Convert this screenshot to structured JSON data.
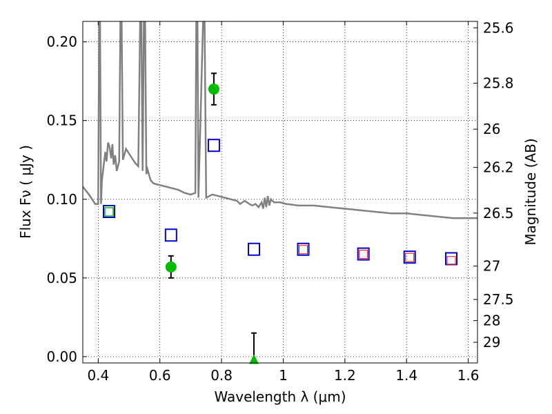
{
  "chart_data": {
    "type": "scatter",
    "xlabel": "Wavelength  λ (μm)",
    "ylabel": "Flux  Fν  ( μJy )",
    "ylabel_right": "Magnitude (AB)",
    "xlim": [
      0.35,
      1.63
    ],
    "ylim": [
      -0.004,
      0.213
    ],
    "grid": true,
    "x_ticks": [
      {
        "value": 0.4,
        "label": "0.4"
      },
      {
        "value": 0.6,
        "label": "0.6"
      },
      {
        "value": 0.8,
        "label": "0.8"
      },
      {
        "value": 1.0,
        "label": "1"
      },
      {
        "value": 1.2,
        "label": "1.2"
      },
      {
        "value": 1.4,
        "label": "1.4"
      },
      {
        "value": 1.6,
        "label": "1.6"
      }
    ],
    "y_ticks": [
      {
        "value": 0.0,
        "label": "0.00"
      },
      {
        "value": 0.05,
        "label": "0.05"
      },
      {
        "value": 0.1,
        "label": "0.10"
      },
      {
        "value": 0.15,
        "label": "0.15"
      },
      {
        "value": 0.2,
        "label": "0.20"
      }
    ],
    "mag_ticks": [
      {
        "value": 25.6,
        "label": "25.6"
      },
      {
        "value": 25.8,
        "label": "25.8"
      },
      {
        "value": 26.0,
        "label": "26"
      },
      {
        "value": 26.2,
        "label": "26.2"
      },
      {
        "value": 26.5,
        "label": "26.5"
      },
      {
        "value": 27.0,
        "label": "27"
      },
      {
        "value": 27.5,
        "label": "27.5"
      },
      {
        "value": 28.0,
        "label": "28"
      },
      {
        "value": 29.0,
        "label": "29"
      }
    ],
    "series": [
      {
        "kind": "line",
        "color": "#808080",
        "points": [
          [
            0.35,
            0.108
          ],
          [
            0.37,
            0.103
          ],
          [
            0.39,
            0.097
          ],
          [
            0.4,
            0.097
          ],
          [
            0.403,
            0.213
          ],
          [
            0.406,
            0.213
          ],
          [
            0.409,
            0.097
          ],
          [
            0.412,
            0.112
          ],
          [
            0.418,
            0.122
          ],
          [
            0.423,
            0.13
          ],
          [
            0.427,
            0.124
          ],
          [
            0.432,
            0.136
          ],
          [
            0.437,
            0.133
          ],
          [
            0.442,
            0.126
          ],
          [
            0.446,
            0.135
          ],
          [
            0.45,
            0.122
          ],
          [
            0.455,
            0.128
          ],
          [
            0.46,
            0.118
          ],
          [
            0.468,
            0.124
          ],
          [
            0.472,
            0.213
          ],
          [
            0.476,
            0.213
          ],
          [
            0.48,
            0.125
          ],
          [
            0.49,
            0.132
          ],
          [
            0.5,
            0.129
          ],
          [
            0.51,
            0.126
          ],
          [
            0.52,
            0.123
          ],
          [
            0.53,
            0.121
          ],
          [
            0.536,
            0.213
          ],
          [
            0.54,
            0.213
          ],
          [
            0.544,
            0.118
          ],
          [
            0.548,
            0.213
          ],
          [
            0.552,
            0.213
          ],
          [
            0.556,
            0.116
          ],
          [
            0.56,
            0.119
          ],
          [
            0.57,
            0.112
          ],
          [
            0.58,
            0.11
          ],
          [
            0.6,
            0.109
          ],
          [
            0.62,
            0.108
          ],
          [
            0.64,
            0.107
          ],
          [
            0.66,
            0.106
          ],
          [
            0.68,
            0.104
          ],
          [
            0.7,
            0.103
          ],
          [
            0.715,
            0.104
          ],
          [
            0.718,
            0.213
          ],
          [
            0.722,
            0.213
          ],
          [
            0.725,
            0.101
          ],
          [
            0.74,
            0.213
          ],
          [
            0.745,
            0.213
          ],
          [
            0.75,
            0.101
          ],
          [
            0.77,
            0.103
          ],
          [
            0.79,
            0.102
          ],
          [
            0.81,
            0.101
          ],
          [
            0.83,
            0.1
          ],
          [
            0.85,
            0.099
          ],
          [
            0.86,
            0.097
          ],
          [
            0.875,
            0.099
          ],
          [
            0.89,
            0.097
          ],
          [
            0.9,
            0.096
          ],
          [
            0.91,
            0.097
          ],
          [
            0.92,
            0.095
          ],
          [
            0.93,
            0.098
          ],
          [
            0.935,
            0.094
          ],
          [
            0.94,
            0.101
          ],
          [
            0.945,
            0.095
          ],
          [
            0.95,
            0.102
          ],
          [
            0.955,
            0.096
          ],
          [
            0.96,
            0.1
          ],
          [
            0.97,
            0.098
          ],
          [
            0.99,
            0.098
          ],
          [
            1.01,
            0.097
          ],
          [
            1.05,
            0.096
          ],
          [
            1.1,
            0.096
          ],
          [
            1.15,
            0.095
          ],
          [
            1.2,
            0.094
          ],
          [
            1.25,
            0.093
          ],
          [
            1.3,
            0.092
          ],
          [
            1.35,
            0.091
          ],
          [
            1.4,
            0.091
          ],
          [
            1.45,
            0.09
          ],
          [
            1.5,
            0.089
          ],
          [
            1.55,
            0.088
          ],
          [
            1.6,
            0.088
          ],
          [
            1.63,
            0.088
          ]
        ]
      },
      {
        "kind": "blue-squares",
        "color": "#0000cc",
        "points": [
          [
            0.435,
            0.092
          ],
          [
            0.636,
            0.077
          ],
          [
            0.775,
            0.134
          ],
          [
            0.905,
            0.068
          ],
          [
            1.065,
            0.068
          ],
          [
            1.26,
            0.065
          ],
          [
            1.41,
            0.063
          ],
          [
            1.545,
            0.062
          ]
        ]
      },
      {
        "kind": "red-squares",
        "color": "#ff0000",
        "points": [
          [
            1.065,
            0.068
          ],
          [
            1.26,
            0.065
          ],
          [
            1.41,
            0.063
          ],
          [
            1.545,
            0.061
          ]
        ]
      },
      {
        "kind": "green-square",
        "color": "#00bb00",
        "points": [
          [
            0.435,
            0.092
          ]
        ]
      },
      {
        "kind": "green-circles",
        "color": "#00bb00",
        "points": [
          [
            0.636,
            0.057,
            0.05,
            0.064
          ],
          [
            0.775,
            0.17,
            0.16,
            0.18
          ]
        ]
      },
      {
        "kind": "green-triangle",
        "color": "#00bb00",
        "points": [
          [
            0.905,
            -0.002,
            -0.003,
            0.015
          ]
        ]
      }
    ]
  }
}
